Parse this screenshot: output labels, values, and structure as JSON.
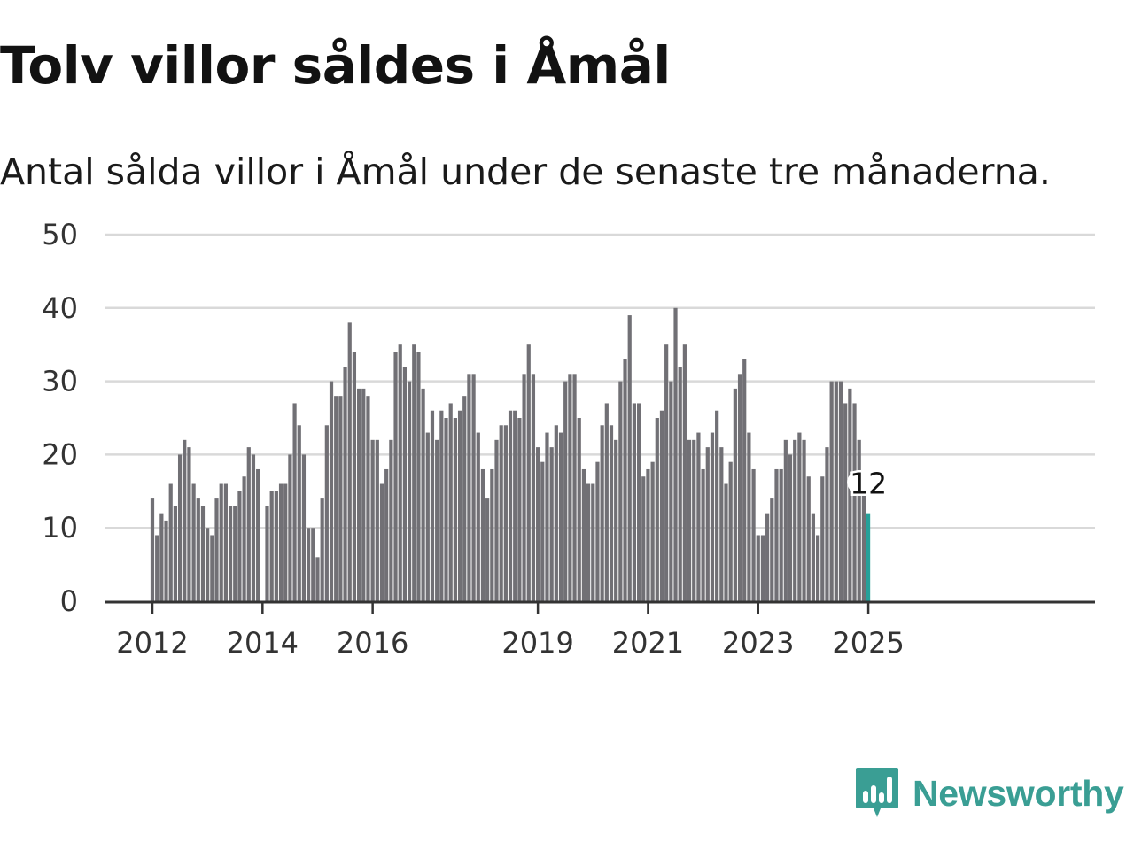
{
  "title": "Tolv villor såldes i Åmål",
  "subtitle": "Antal sålda villor i Åmål under de senaste tre månaderna.",
  "brand": {
    "name": "Newsworthy",
    "color": "#3a9e94",
    "logo_icon": "bar-chart-speech-bubble-icon"
  },
  "colors": {
    "bar": "#717075",
    "highlight": "#25a19a",
    "grid": "#d9d9d9",
    "axis": "#333333"
  },
  "chart_data": {
    "type": "bar",
    "title": "Tolv villor såldes i Åmål",
    "subtitle": "Antal sålda villor i Åmål under de senaste tre månaderna.",
    "xlabel": "",
    "ylabel": "",
    "ylim": [
      0,
      50
    ],
    "yticks": [
      0,
      10,
      20,
      30,
      40,
      50
    ],
    "xticks": [
      "2012",
      "2014",
      "2016",
      "2019",
      "2021",
      "2023",
      "2025"
    ],
    "grid": true,
    "start": "2012-01",
    "frequency": "monthly",
    "end": "2025-01",
    "values": [
      14,
      9,
      12,
      11,
      16,
      13,
      20,
      22,
      21,
      16,
      14,
      13,
      10,
      9,
      14,
      16,
      16,
      13,
      13,
      15,
      17,
      21,
      20,
      18,
      null,
      13,
      15,
      15,
      16,
      16,
      20,
      27,
      24,
      20,
      10,
      10,
      6,
      14,
      24,
      30,
      28,
      28,
      32,
      38,
      34,
      29,
      29,
      28,
      22,
      22,
      16,
      18,
      22,
      34,
      35,
      32,
      30,
      35,
      34,
      29,
      23,
      26,
      22,
      26,
      25,
      27,
      25,
      26,
      28,
      31,
      31,
      23,
      18,
      14,
      18,
      22,
      24,
      24,
      26,
      26,
      25,
      31,
      35,
      31,
      21,
      19,
      23,
      21,
      24,
      23,
      30,
      31,
      31,
      25,
      18,
      16,
      16,
      19,
      24,
      27,
      24,
      22,
      30,
      33,
      39,
      27,
      27,
      17,
      18,
      19,
      25,
      26,
      35,
      30,
      40,
      32,
      35,
      22,
      22,
      23,
      18,
      21,
      23,
      26,
      21,
      16,
      19,
      29,
      31,
      33,
      23,
      18,
      9,
      9,
      12,
      14,
      18,
      18,
      22,
      20,
      22,
      23,
      22,
      17,
      12,
      9,
      17,
      21,
      30,
      30,
      30,
      27,
      29,
      27,
      22,
      15,
      12
    ],
    "highlight": {
      "label": "12",
      "value": 12,
      "period": "2025-01"
    }
  }
}
